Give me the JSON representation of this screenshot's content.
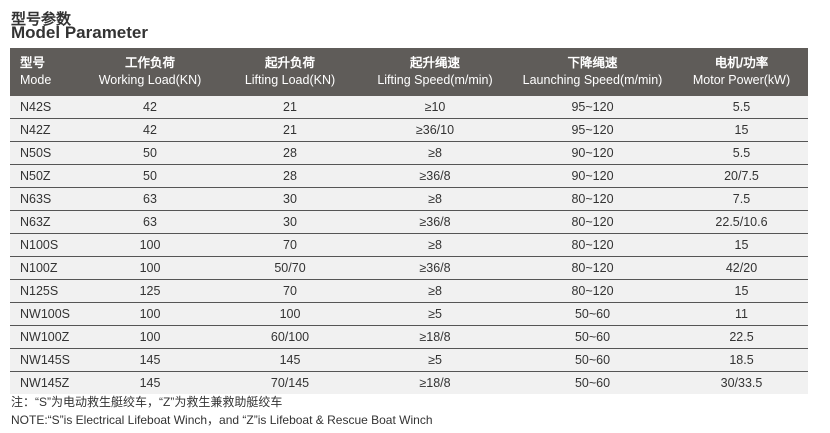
{
  "title_cn": "型号参数",
  "title_en": "Model Parameter",
  "headers": [
    {
      "cn": "型号",
      "en": "Mode"
    },
    {
      "cn": "工作负荷",
      "en": "Working Load(KN)"
    },
    {
      "cn": "起升负荷",
      "en": "Lifting Load(KN)"
    },
    {
      "cn": "起升绳速",
      "en": "Lifting Speed(m/min)"
    },
    {
      "cn": "下降绳速",
      "en": "Launching Speed(m/min)"
    },
    {
      "cn": "电机/功率",
      "en": "Motor Power(kW)"
    }
  ],
  "rows": [
    [
      "N42S",
      "42",
      "21",
      "≥10",
      "95~120",
      "5.5"
    ],
    [
      "N42Z",
      "42",
      "21",
      "≥36/10",
      "95~120",
      "15"
    ],
    [
      "N50S",
      "50",
      "28",
      "≥8",
      "90~120",
      "5.5"
    ],
    [
      "N50Z",
      "50",
      "28",
      "≥36/8",
      "90~120",
      "20/7.5"
    ],
    [
      "N63S",
      "63",
      "30",
      "≥8",
      "80~120",
      "7.5"
    ],
    [
      "N63Z",
      "63",
      "30",
      "≥36/8",
      "80~120",
      "22.5/10.6"
    ],
    [
      "N100S",
      "100",
      "70",
      "≥8",
      "80~120",
      "15"
    ],
    [
      "N100Z",
      "100",
      "50/70",
      "≥36/8",
      "80~120",
      "42/20"
    ],
    [
      "N125S",
      "125",
      "70",
      "≥8",
      "80~120",
      "15"
    ],
    [
      "NW100S",
      "100",
      "100",
      "≥5",
      "50~60",
      "11"
    ],
    [
      "NW100Z",
      "100",
      "60/100",
      "≥18/8",
      "50~60",
      "22.5"
    ],
    [
      "NW145S",
      "145",
      "145",
      "≥5",
      "50~60",
      "18.5"
    ],
    [
      "NW145Z",
      "145",
      "70/145",
      "≥18/8",
      "50~60",
      "30/33.5"
    ]
  ],
  "note_cn": "注：“S”为电动救生艇绞车，“Z”为救生兼救助艇绞车",
  "note_en": "NOTE:“S”is Electrical Lifeboat Winch，and “Z”is Lifeboat & Rescue Boat Winch"
}
